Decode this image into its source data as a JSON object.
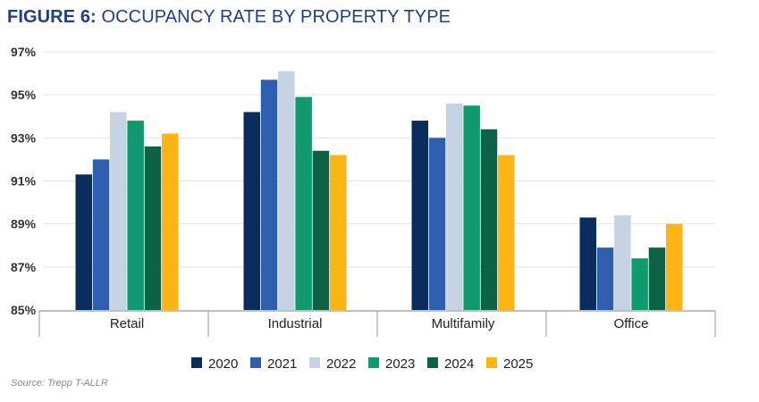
{
  "title": {
    "prefix": "FIGURE 6:",
    "text": "OCCUPANCY RATE BY PROPERTY TYPE"
  },
  "source": "Source: Trepp T-ALLR",
  "colors": {
    "2020": "#0a2d5e",
    "2021": "#2e5eae",
    "2022": "#c5d3e2",
    "2023": "#119a6e",
    "2024": "#0b6244",
    "2025": "#fdb515"
  },
  "chart_data": {
    "type": "bar",
    "title": "OCCUPANCY RATE BY PROPERTY TYPE",
    "categories": [
      "Retail",
      "Industrial",
      "Multifamily",
      "Office"
    ],
    "ylim": [
      85,
      97
    ],
    "yticks": [
      85,
      87,
      89,
      91,
      93,
      95,
      97
    ],
    "ytick_labels": [
      "85%",
      "87%",
      "89%",
      "91%",
      "93%",
      "95%",
      "97%"
    ],
    "grid": true,
    "legend_position": "bottom",
    "series": [
      {
        "name": "2020",
        "values": [
          91.3,
          94.2,
          93.8,
          89.3
        ]
      },
      {
        "name": "2021",
        "values": [
          92.0,
          95.7,
          93.0,
          87.9
        ]
      },
      {
        "name": "2022",
        "values": [
          94.2,
          96.1,
          94.6,
          89.4
        ]
      },
      {
        "name": "2023",
        "values": [
          93.8,
          94.9,
          94.5,
          87.4
        ]
      },
      {
        "name": "2024",
        "values": [
          92.6,
          92.4,
          93.4,
          87.9
        ]
      },
      {
        "name": "2025",
        "values": [
          93.2,
          92.2,
          92.2,
          89.0
        ]
      }
    ]
  }
}
